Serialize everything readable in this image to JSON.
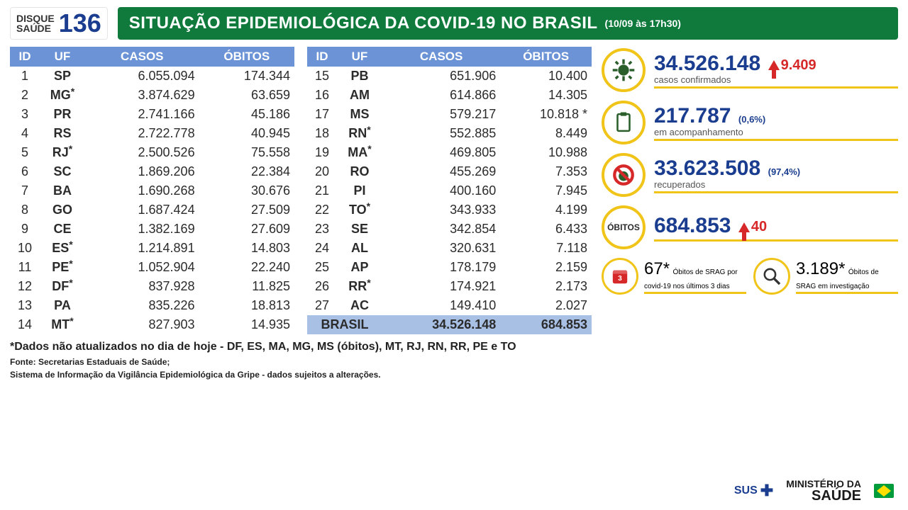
{
  "disque": {
    "label": "DISQUE\nSAÚDE",
    "number": "136"
  },
  "banner": {
    "title": "SITUAÇÃO EPIDEMIOLÓGICA DA COVID-19 NO BRASIL",
    "subtitle": "(10/09 às 17h30)"
  },
  "table": {
    "headers": [
      "ID",
      "UF",
      "CASOS",
      "ÓBITOS"
    ],
    "rows_left": [
      {
        "id": "1",
        "uf": "SP",
        "ast": false,
        "cases": "6.055.094",
        "deaths": "174.344"
      },
      {
        "id": "2",
        "uf": "MG",
        "ast": true,
        "cases": "3.874.629",
        "deaths": "63.659"
      },
      {
        "id": "3",
        "uf": "PR",
        "ast": false,
        "cases": "2.741.166",
        "deaths": "45.186"
      },
      {
        "id": "4",
        "uf": "RS",
        "ast": false,
        "cases": "2.722.778",
        "deaths": "40.945"
      },
      {
        "id": "5",
        "uf": "RJ",
        "ast": true,
        "cases": "2.500.526",
        "deaths": "75.558"
      },
      {
        "id": "6",
        "uf": "SC",
        "ast": false,
        "cases": "1.869.206",
        "deaths": "22.384"
      },
      {
        "id": "7",
        "uf": "BA",
        "ast": false,
        "cases": "1.690.268",
        "deaths": "30.676"
      },
      {
        "id": "8",
        "uf": "GO",
        "ast": false,
        "cases": "1.687.424",
        "deaths": "27.509"
      },
      {
        "id": "9",
        "uf": "CE",
        "ast": false,
        "cases": "1.382.169",
        "deaths": "27.609"
      },
      {
        "id": "10",
        "uf": "ES",
        "ast": true,
        "cases": "1.214.891",
        "deaths": "14.803"
      },
      {
        "id": "11",
        "uf": "PE",
        "ast": true,
        "cases": "1.052.904",
        "deaths": "22.240"
      },
      {
        "id": "12",
        "uf": "DF",
        "ast": true,
        "cases": "837.928",
        "deaths": "11.825"
      },
      {
        "id": "13",
        "uf": "PA",
        "ast": false,
        "cases": "835.226",
        "deaths": "18.813"
      },
      {
        "id": "14",
        "uf": "MT",
        "ast": true,
        "cases": "827.903",
        "deaths": "14.935"
      }
    ],
    "rows_right": [
      {
        "id": "15",
        "uf": "PB",
        "ast": false,
        "cases": "651.906",
        "deaths": "10.400"
      },
      {
        "id": "16",
        "uf": "AM",
        "ast": false,
        "cases": "614.866",
        "deaths": "14.305"
      },
      {
        "id": "17",
        "uf": "MS",
        "ast": false,
        "cases": "579.217",
        "deaths": "10.818 *"
      },
      {
        "id": "18",
        "uf": "RN",
        "ast": true,
        "cases": "552.885",
        "deaths": "8.449"
      },
      {
        "id": "19",
        "uf": "MA",
        "ast": true,
        "cases": "469.805",
        "deaths": "10.988"
      },
      {
        "id": "20",
        "uf": "RO",
        "ast": false,
        "cases": "455.269",
        "deaths": "7.353"
      },
      {
        "id": "21",
        "uf": "PI",
        "ast": false,
        "cases": "400.160",
        "deaths": "7.945"
      },
      {
        "id": "22",
        "uf": "TO",
        "ast": true,
        "cases": "343.933",
        "deaths": "4.199"
      },
      {
        "id": "23",
        "uf": "SE",
        "ast": false,
        "cases": "342.854",
        "deaths": "6.433"
      },
      {
        "id": "24",
        "uf": "AL",
        "ast": false,
        "cases": "320.631",
        "deaths": "7.118"
      },
      {
        "id": "25",
        "uf": "AP",
        "ast": false,
        "cases": "178.179",
        "deaths": "2.159"
      },
      {
        "id": "26",
        "uf": "RR",
        "ast": true,
        "cases": "174.921",
        "deaths": "2.173"
      },
      {
        "id": "27",
        "uf": "AC",
        "ast": false,
        "cases": "149.410",
        "deaths": "2.027"
      }
    ],
    "total": {
      "label": "BRASIL",
      "cases": "34.526.148",
      "deaths": "684.853"
    }
  },
  "stats": {
    "confirmed": {
      "value": "34.526.148",
      "delta": "9.409",
      "label": "casos confirmados"
    },
    "monitoring": {
      "value": "217.787",
      "pct": "(0,6%)",
      "label": "em acompanhamento"
    },
    "recovered": {
      "value": "33.623.508",
      "pct": "(97,4%)",
      "label": "recuperados"
    },
    "deaths": {
      "badge": "ÓBITOS",
      "value": "684.853",
      "delta": "40"
    },
    "srag3d": {
      "value": "67",
      "ast": "*",
      "label": "Óbitos de SRAG por covid-19 nos últimos 3 dias"
    },
    "srag_inv": {
      "value": "3.189",
      "ast": "*",
      "label": "Óbitos de SRAG em investigação"
    }
  },
  "footnote": "*Dados não atualizados no dia de hoje - DF, ES, MA, MG, MS (óbitos), MT, RJ, RN, RR, PE e TO",
  "fonte_lines": [
    "Fonte: Secretarias Estaduais de Saúde;",
    "Sistema de Informação da Vigilância Epidemiológica da Gripe - dados sujeitos a alterações."
  ],
  "logos": {
    "sus": "SUS",
    "ms_top": "MINISTÉRIO DA",
    "ms_bot": "SAÚDE"
  },
  "colors": {
    "banner_bg": "#0f7a3c",
    "header_bg": "#6b93d6",
    "header_fg": "#ffffff",
    "brand_blue": "#1a3d8f",
    "accent_yellow": "#f0c419",
    "delta_red": "#d62828",
    "total_row_bg": "#a9c0e5"
  }
}
